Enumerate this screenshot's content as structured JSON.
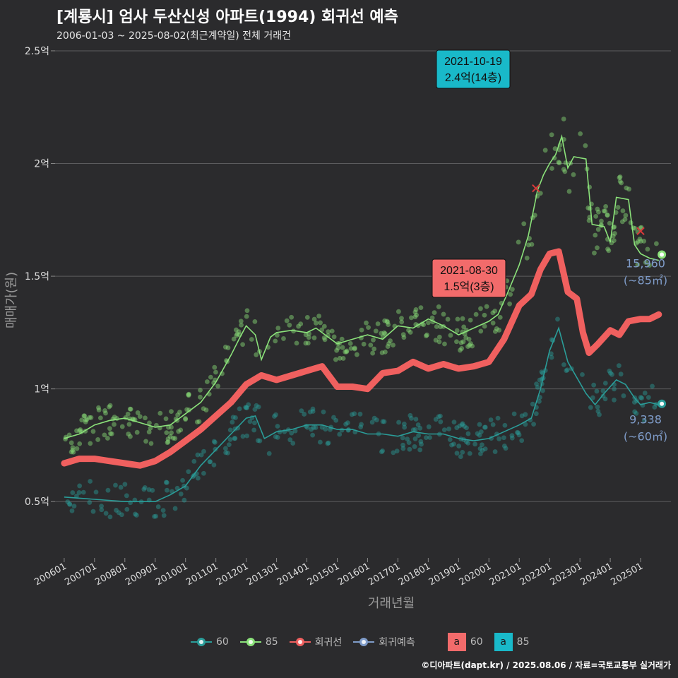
{
  "title": "[계룡시] 엄사 두산신성 아파트(1994) 회귀선 예측",
  "subtitle": "2006-01-03 ~ 2025-08-02(최근계약일) 전체 거래건",
  "caption": "©디아파트(dapt.kr) / 2025.08.06 / 자료=국토교통부 실거래가",
  "legend": {
    "items": [
      {
        "label": "60",
        "color": "#2a9d99"
      },
      {
        "label": "85",
        "color": "#8be27a"
      },
      {
        "label": "회귀선",
        "color": "#f0605f"
      },
      {
        "label": "회귀예측",
        "color": "#7f9cc9"
      }
    ],
    "boxes": [
      {
        "letter": "a",
        "label": "60",
        "color": "#f26b6b"
      },
      {
        "letter": "a",
        "label": "85",
        "color": "#19b9c9"
      }
    ]
  },
  "chart_data": {
    "type": "scatter",
    "xlabel": "거래년월",
    "ylabel": "매매가(원)",
    "ylim": [
      0.25,
      2.55
    ],
    "xlim": [
      2005.7,
      2026.0
    ],
    "yticks": [
      {
        "value": 0.5,
        "label": "0.5억"
      },
      {
        "value": 1.0,
        "label": "1억"
      },
      {
        "value": 1.5,
        "label": "1.5억"
      },
      {
        "value": 2.0,
        "label": "2억"
      },
      {
        "value": 2.5,
        "label": "2.5억"
      }
    ],
    "xticks": [
      "200601",
      "200701",
      "200801",
      "200901",
      "201001",
      "201101",
      "201201",
      "201301",
      "201401",
      "201501",
      "201601",
      "201701",
      "201801",
      "201901",
      "202001",
      "202101",
      "202201",
      "202301",
      "202401",
      "202501"
    ],
    "series": [
      {
        "name": "85",
        "color": "#8be27a",
        "line": [
          [
            2006.0,
            0.78
          ],
          [
            2006.5,
            0.8
          ],
          [
            2007.0,
            0.84
          ],
          [
            2007.5,
            0.86
          ],
          [
            2008.0,
            0.87
          ],
          [
            2008.5,
            0.85
          ],
          [
            2009.0,
            0.83
          ],
          [
            2009.5,
            0.84
          ],
          [
            2010.0,
            0.89
          ],
          [
            2010.5,
            0.94
          ],
          [
            2011.0,
            1.03
          ],
          [
            2011.5,
            1.15
          ],
          [
            2011.8,
            1.23
          ],
          [
            2012.0,
            1.28
          ],
          [
            2012.3,
            1.24
          ],
          [
            2012.5,
            1.13
          ],
          [
            2012.8,
            1.23
          ],
          [
            2013.0,
            1.25
          ],
          [
            2013.5,
            1.26
          ],
          [
            2014.0,
            1.25
          ],
          [
            2014.3,
            1.27
          ],
          [
            2014.6,
            1.24
          ],
          [
            2015.0,
            1.2
          ],
          [
            2015.5,
            1.22
          ],
          [
            2016.0,
            1.24
          ],
          [
            2016.5,
            1.22
          ],
          [
            2017.0,
            1.28
          ],
          [
            2017.5,
            1.27
          ],
          [
            2018.0,
            1.31
          ],
          [
            2018.5,
            1.28
          ],
          [
            2019.0,
            1.24
          ],
          [
            2019.5,
            1.27
          ],
          [
            2020.0,
            1.3
          ],
          [
            2020.3,
            1.33
          ],
          [
            2020.6,
            1.42
          ],
          [
            2021.0,
            1.55
          ],
          [
            2021.3,
            1.68
          ],
          [
            2021.6,
            1.88
          ],
          [
            2021.8,
            1.95
          ],
          [
            2022.0,
            2.0
          ],
          [
            2022.2,
            2.04
          ],
          [
            2022.4,
            2.12
          ],
          [
            2022.6,
            1.98
          ],
          [
            2022.8,
            2.03
          ],
          [
            2023.2,
            2.02
          ],
          [
            2023.4,
            1.73
          ],
          [
            2023.8,
            1.72
          ],
          [
            2024.0,
            1.65
          ],
          [
            2024.2,
            1.85
          ],
          [
            2024.6,
            1.84
          ],
          [
            2024.8,
            1.64
          ],
          [
            2025.0,
            1.6
          ],
          [
            2025.3,
            1.58
          ],
          [
            2025.6,
            1.57
          ]
        ],
        "points_count": 360
      },
      {
        "name": "60",
        "color": "#2a9d99",
        "line": [
          [
            2006.0,
            0.52
          ],
          [
            2007.0,
            0.51
          ],
          [
            2008.0,
            0.5
          ],
          [
            2009.0,
            0.5
          ],
          [
            2009.5,
            0.53
          ],
          [
            2010.0,
            0.57
          ],
          [
            2010.5,
            0.66
          ],
          [
            2011.0,
            0.73
          ],
          [
            2011.5,
            0.8
          ],
          [
            2012.0,
            0.87
          ],
          [
            2012.3,
            0.88
          ],
          [
            2012.6,
            0.78
          ],
          [
            2013.0,
            0.81
          ],
          [
            2013.5,
            0.82
          ],
          [
            2014.0,
            0.84
          ],
          [
            2014.5,
            0.84
          ],
          [
            2015.0,
            0.82
          ],
          [
            2015.5,
            0.82
          ],
          [
            2016.0,
            0.8
          ],
          [
            2016.5,
            0.8
          ],
          [
            2017.0,
            0.79
          ],
          [
            2017.5,
            0.81
          ],
          [
            2018.0,
            0.8
          ],
          [
            2018.5,
            0.8
          ],
          [
            2019.0,
            0.78
          ],
          [
            2019.5,
            0.77
          ],
          [
            2020.0,
            0.78
          ],
          [
            2020.5,
            0.81
          ],
          [
            2021.0,
            0.84
          ],
          [
            2021.4,
            0.87
          ],
          [
            2021.7,
            1.0
          ],
          [
            2022.0,
            1.17
          ],
          [
            2022.3,
            1.27
          ],
          [
            2022.6,
            1.12
          ],
          [
            2022.9,
            1.05
          ],
          [
            2023.2,
            0.98
          ],
          [
            2023.5,
            0.93
          ],
          [
            2023.8,
            0.98
          ],
          [
            2024.2,
            1.04
          ],
          [
            2024.5,
            1.02
          ],
          [
            2024.8,
            0.96
          ],
          [
            2025.0,
            0.93
          ],
          [
            2025.3,
            0.94
          ],
          [
            2025.6,
            0.93
          ]
        ],
        "points_count": 300
      },
      {
        "name": "회귀선",
        "color": "#f0605f",
        "line": [
          [
            2006.0,
            0.67
          ],
          [
            2006.5,
            0.69
          ],
          [
            2007.0,
            0.69
          ],
          [
            2007.5,
            0.68
          ],
          [
            2008.0,
            0.67
          ],
          [
            2008.5,
            0.66
          ],
          [
            2009.0,
            0.68
          ],
          [
            2009.5,
            0.72
          ],
          [
            2010.0,
            0.77
          ],
          [
            2010.5,
            0.82
          ],
          [
            2011.0,
            0.88
          ],
          [
            2011.5,
            0.94
          ],
          [
            2012.0,
            1.02
          ],
          [
            2012.5,
            1.06
          ],
          [
            2013.0,
            1.04
          ],
          [
            2013.5,
            1.06
          ],
          [
            2014.0,
            1.08
          ],
          [
            2014.5,
            1.1
          ],
          [
            2015.0,
            1.01
          ],
          [
            2015.5,
            1.01
          ],
          [
            2016.0,
            1.0
          ],
          [
            2016.5,
            1.07
          ],
          [
            2017.0,
            1.08
          ],
          [
            2017.5,
            1.12
          ],
          [
            2018.0,
            1.09
          ],
          [
            2018.5,
            1.11
          ],
          [
            2019.0,
            1.09
          ],
          [
            2019.5,
            1.1
          ],
          [
            2020.0,
            1.12
          ],
          [
            2020.5,
            1.22
          ],
          [
            2021.0,
            1.37
          ],
          [
            2021.4,
            1.42
          ],
          [
            2021.7,
            1.53
          ],
          [
            2022.0,
            1.6
          ],
          [
            2022.3,
            1.61
          ],
          [
            2022.6,
            1.43
          ],
          [
            2022.9,
            1.4
          ],
          [
            2023.1,
            1.25
          ],
          [
            2023.3,
            1.16
          ],
          [
            2023.6,
            1.2
          ],
          [
            2024.0,
            1.26
          ],
          [
            2024.3,
            1.24
          ],
          [
            2024.6,
            1.3
          ],
          [
            2025.0,
            1.31
          ],
          [
            2025.3,
            1.31
          ],
          [
            2025.6,
            1.33
          ]
        ]
      }
    ],
    "callouts": [
      {
        "date": "2021-10-19",
        "text": "2.4억(14층)",
        "x": 2021.8,
        "y": 2.4,
        "color": "#19b9c9"
      },
      {
        "date": "2021-08-30",
        "text": "1.5억(3층)",
        "x": 2021.66,
        "y": 1.5,
        "color": "#f26b6b"
      }
    ],
    "end_labels": [
      {
        "value": "15,960",
        "unit": "(~85㎡)",
        "x": 2025.7,
        "y": 1.596,
        "color": "#8be27a"
      },
      {
        "value": "9,338",
        "unit": "(~60㎡)",
        "x": 2025.7,
        "y": 0.934,
        "color": "#2a9d99"
      }
    ],
    "cancelled_marks": [
      {
        "x": 2021.55,
        "y": 1.89
      },
      {
        "x": 2025.0,
        "y": 1.7
      }
    ]
  }
}
